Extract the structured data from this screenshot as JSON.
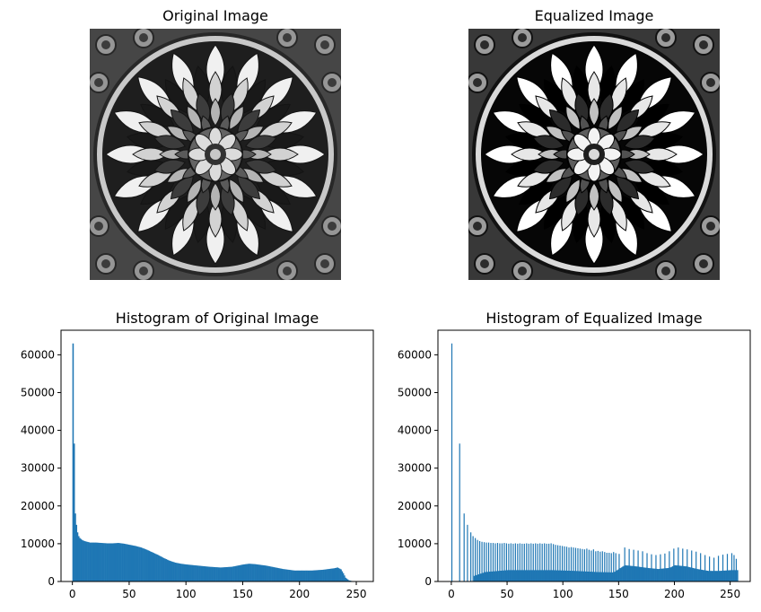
{
  "panels": {
    "original_title": "Original Image",
    "equalized_title": "Equalized Image",
    "hist_original_title": "Histogram of Original Image",
    "hist_equalized_title": "Histogram of Equalized Image"
  },
  "chart_data": [
    {
      "type": "bar",
      "title": "Histogram of Original Image",
      "xlabel": "",
      "ylabel": "",
      "xlim": [
        -10,
        265
      ],
      "ylim": [
        0,
        66500
      ],
      "x_ticks": [
        0,
        50,
        100,
        150,
        200,
        250
      ],
      "y_ticks": [
        0,
        10000,
        20000,
        30000,
        40000,
        50000,
        60000
      ],
      "color": "#1f77b4",
      "points": [
        [
          0,
          63000
        ],
        [
          1,
          36500
        ],
        [
          2,
          18000
        ],
        [
          3,
          15000
        ],
        [
          4,
          13000
        ],
        [
          5,
          12000
        ],
        [
          6,
          11500
        ],
        [
          8,
          11000
        ],
        [
          10,
          10700
        ],
        [
          15,
          10300
        ],
        [
          20,
          10300
        ],
        [
          25,
          10200
        ],
        [
          30,
          10100
        ],
        [
          35,
          10100
        ],
        [
          40,
          10200
        ],
        [
          45,
          10000
        ],
        [
          50,
          9700
        ],
        [
          55,
          9400
        ],
        [
          60,
          9000
        ],
        [
          65,
          8400
        ],
        [
          70,
          7700
        ],
        [
          75,
          7000
        ],
        [
          80,
          6200
        ],
        [
          85,
          5500
        ],
        [
          90,
          5000
        ],
        [
          95,
          4700
        ],
        [
          100,
          4500
        ],
        [
          110,
          4200
        ],
        [
          120,
          3900
        ],
        [
          130,
          3700
        ],
        [
          140,
          3900
        ],
        [
          145,
          4200
        ],
        [
          150,
          4500
        ],
        [
          155,
          4700
        ],
        [
          160,
          4600
        ],
        [
          165,
          4400
        ],
        [
          170,
          4200
        ],
        [
          175,
          3900
        ],
        [
          180,
          3600
        ],
        [
          185,
          3300
        ],
        [
          190,
          3100
        ],
        [
          195,
          2900
        ],
        [
          200,
          2900
        ],
        [
          205,
          2900
        ],
        [
          210,
          2900
        ],
        [
          215,
          3000
        ],
        [
          220,
          3100
        ],
        [
          225,
          3300
        ],
        [
          230,
          3500
        ],
        [
          233,
          3700
        ],
        [
          236,
          3200
        ],
        [
          238,
          2200
        ],
        [
          240,
          1000
        ],
        [
          243,
          300
        ],
        [
          246,
          100
        ],
        [
          250,
          0
        ]
      ]
    },
    {
      "type": "bar",
      "title": "Histogram of Equalized Image",
      "xlabel": "",
      "ylabel": "",
      "xlim": [
        -12,
        268
      ],
      "ylim": [
        0,
        66500
      ],
      "x_ticks": [
        0,
        50,
        100,
        150,
        200,
        250
      ],
      "y_ticks": [
        0,
        10000,
        20000,
        30000,
        40000,
        50000,
        60000
      ],
      "color": "#1f77b4",
      "spikes": [
        [
          0,
          63000
        ],
        [
          7,
          36500
        ],
        [
          11,
          18000
        ],
        [
          14,
          15000
        ],
        [
          17,
          13000
        ],
        [
          19,
          12000
        ],
        [
          21,
          11500
        ],
        [
          23,
          11000
        ],
        [
          25,
          10700
        ],
        [
          27,
          10500
        ],
        [
          29,
          10400
        ],
        [
          31,
          10300
        ],
        [
          33,
          10300
        ],
        [
          35,
          10200
        ],
        [
          37,
          10200
        ],
        [
          39,
          10100
        ],
        [
          41,
          10200
        ],
        [
          43,
          10100
        ],
        [
          45,
          10100
        ],
        [
          47,
          10200
        ],
        [
          49,
          10100
        ],
        [
          51,
          10000
        ],
        [
          53,
          10100
        ],
        [
          55,
          10000
        ],
        [
          57,
          10100
        ],
        [
          59,
          10000
        ],
        [
          61,
          10100
        ],
        [
          63,
          10000
        ],
        [
          65,
          10000
        ],
        [
          67,
          10100
        ],
        [
          69,
          10000
        ],
        [
          71,
          10100
        ],
        [
          73,
          10000
        ],
        [
          75,
          10100
        ],
        [
          77,
          10000
        ],
        [
          79,
          10100
        ],
        [
          81,
          10000
        ],
        [
          83,
          10100
        ],
        [
          85,
          10000
        ],
        [
          87,
          10000
        ],
        [
          89,
          10100
        ],
        [
          91,
          9900
        ],
        [
          93,
          9700
        ],
        [
          95,
          9600
        ],
        [
          97,
          9500
        ],
        [
          99,
          9400
        ],
        [
          101,
          9300
        ],
        [
          103,
          9200
        ],
        [
          105,
          9000
        ],
        [
          107,
          9100
        ],
        [
          109,
          9000
        ],
        [
          111,
          8900
        ],
        [
          113,
          8800
        ],
        [
          115,
          8700
        ],
        [
          117,
          8600
        ],
        [
          119,
          8500
        ],
        [
          121,
          8700
        ],
        [
          123,
          8400
        ],
        [
          125,
          8200
        ],
        [
          127,
          8500
        ],
        [
          129,
          8000
        ],
        [
          131,
          8100
        ],
        [
          133,
          7900
        ],
        [
          135,
          8000
        ],
        [
          137,
          7800
        ],
        [
          139,
          7600
        ],
        [
          141,
          7600
        ],
        [
          143,
          7500
        ],
        [
          145,
          7800
        ],
        [
          147,
          7500
        ],
        [
          150,
          7300
        ],
        [
          155,
          9000
        ],
        [
          159,
          8600
        ],
        [
          163,
          8400
        ],
        [
          167,
          8200
        ],
        [
          171,
          8000
        ],
        [
          175,
          7500
        ],
        [
          179,
          7200
        ],
        [
          183,
          7000
        ],
        [
          187,
          7200
        ],
        [
          191,
          7400
        ],
        [
          195,
          8000
        ],
        [
          199,
          8700
        ],
        [
          203,
          9000
        ],
        [
          207,
          8700
        ],
        [
          211,
          8500
        ],
        [
          215,
          8200
        ],
        [
          219,
          7900
        ],
        [
          223,
          7500
        ],
        [
          227,
          7000
        ],
        [
          231,
          6600
        ],
        [
          235,
          6300
        ],
        [
          239,
          6800
        ],
        [
          243,
          7100
        ],
        [
          247,
          7300
        ],
        [
          251,
          7500
        ],
        [
          253,
          7000
        ],
        [
          255,
          6000
        ]
      ],
      "baseline": [
        [
          20,
          1500
        ],
        [
          30,
          2500
        ],
        [
          50,
          3000
        ],
        [
          70,
          3000
        ],
        [
          90,
          3000
        ],
        [
          110,
          2800
        ],
        [
          130,
          2500
        ],
        [
          145,
          2400
        ],
        [
          155,
          4300
        ],
        [
          165,
          4000
        ],
        [
          175,
          3600
        ],
        [
          185,
          3300
        ],
        [
          195,
          3600
        ],
        [
          200,
          4300
        ],
        [
          210,
          4000
        ],
        [
          220,
          3300
        ],
        [
          230,
          2800
        ],
        [
          240,
          2800
        ],
        [
          250,
          3000
        ],
        [
          256,
          3000
        ]
      ]
    }
  ]
}
